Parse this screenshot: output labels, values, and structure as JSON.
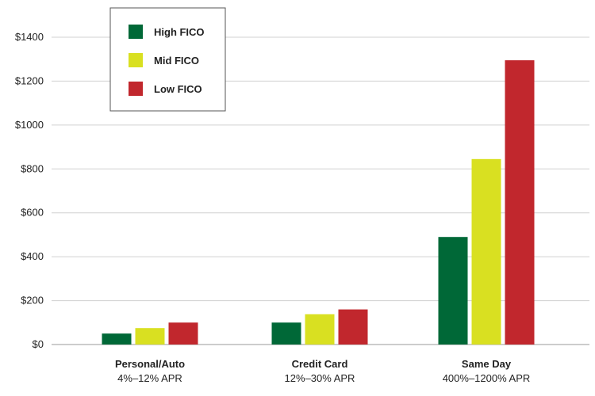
{
  "chart_data": {
    "type": "bar",
    "title": "",
    "xlabel": "",
    "ylabel": "",
    "ylim": [
      0,
      1400
    ],
    "yticks": [
      0,
      200,
      400,
      600,
      800,
      1000,
      1200,
      1400
    ],
    "ytick_labels": [
      "$0",
      "$200",
      "$400",
      "$600",
      "$800",
      "$1000",
      "$1200",
      "$1400"
    ],
    "grid": true,
    "legend_position": "top-left",
    "categories": [
      {
        "name": "Personal/Auto",
        "sub": "4%–12% APR"
      },
      {
        "name": "Credit Card",
        "sub": "12%–30% APR"
      },
      {
        "name": "Same Day",
        "sub": "400%–1200% APR"
      }
    ],
    "series": [
      {
        "name": "High FICO",
        "color": "#006837",
        "values": [
          50,
          100,
          490
        ]
      },
      {
        "name": "Mid FICO",
        "color": "#d9e021",
        "values": [
          75,
          138,
          845
        ]
      },
      {
        "name": "Low FICO",
        "color": "#c1272d",
        "values": [
          100,
          160,
          1295
        ]
      }
    ]
  }
}
